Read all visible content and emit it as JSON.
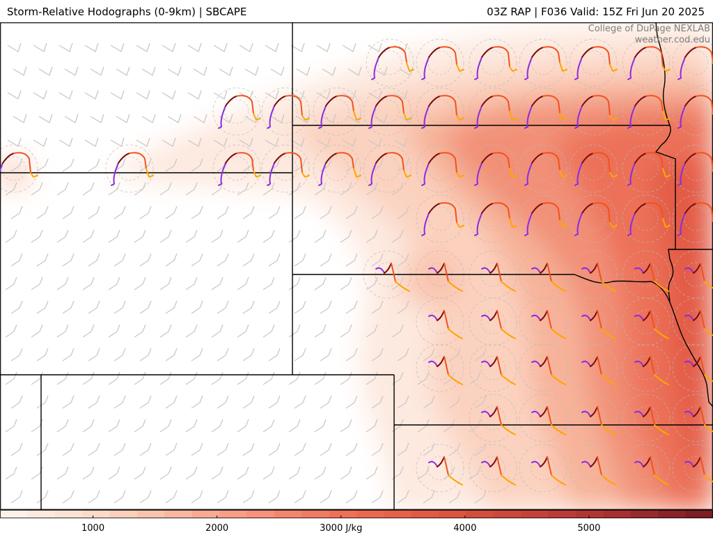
{
  "header": {
    "title_left": "Storm-Relative Hodographs (0-9km) | SBCAPE",
    "title_right": "03Z RAP | F036 Valid: 15Z Fri Jun 20 2025"
  },
  "credit": {
    "line1": "College of DuPage NEXLAB",
    "line2": "weather.cod.edu"
  },
  "colorbar": {
    "unit": "J/kg",
    "ticks": [
      {
        "value": 1000,
        "label": "1000"
      },
      {
        "value": 2000,
        "label": "2000"
      },
      {
        "value": 3000,
        "label": "3000 J/kg"
      },
      {
        "value": 4000,
        "label": "4000"
      },
      {
        "value": 5000,
        "label": "5000"
      }
    ],
    "range": [
      250,
      6000
    ],
    "palette": [
      "#fdf1ea",
      "#fcd9c8",
      "#f9b49c",
      "#f48d74",
      "#ec6b53",
      "#de5640",
      "#c6423a",
      "#a73132",
      "#7a1d24"
    ]
  },
  "colors": {
    "hodo_low": "#7b0c0c",
    "hodo_mid": "#f0521f",
    "hodo_upper": "#ffa500",
    "hodo_top": "#8a2be2",
    "barb": "#c8c8c8",
    "border": "#000000"
  }
}
